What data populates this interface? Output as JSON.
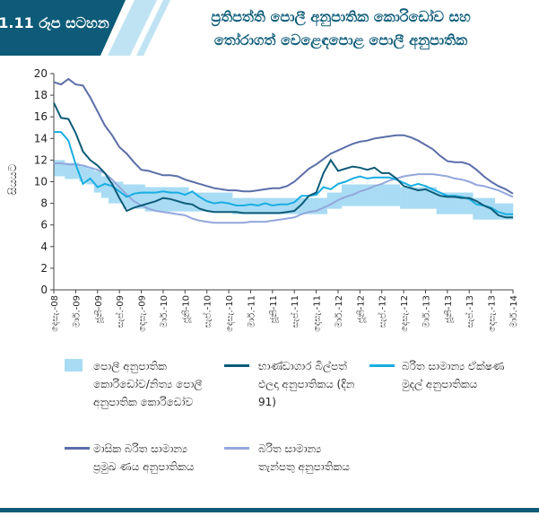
{
  "header": {
    "chart_number": "1.11 රූප සටහන",
    "title_lines": [
      "ප්‍රතිපත්ති පොලී අනුපාතික කොරිඩෝව සහ",
      "තෝරාගත් වෙළෙඳපොළ පොලී අනුපාතික"
    ]
  },
  "chart_data": {
    "type": "line",
    "ylabel": "සියයට",
    "ylim": [
      0,
      20
    ],
    "yticks": [
      0,
      2,
      4,
      6,
      8,
      10,
      12,
      14,
      16,
      18,
      20
    ],
    "categories": [
      "දෙසැ.-08",
      null,
      null,
      "මාර්.-09",
      null,
      null,
      "ජූනි-09",
      null,
      null,
      "සැප්.-09",
      null,
      null,
      "දෙසැ.-09",
      null,
      null,
      "මාර්.-10",
      null,
      null,
      "ජූනි-10",
      null,
      null,
      "සැප්.-10",
      null,
      null,
      "දෙසැ.-10",
      null,
      null,
      "මාර්.-11",
      null,
      null,
      "ජූනි-11",
      null,
      null,
      "සැප්.-11",
      null,
      null,
      "දෙසැ.-11",
      null,
      null,
      "මාර්.-12",
      null,
      null,
      "ජූනි-12",
      null,
      null,
      "සැප්.-12",
      null,
      null,
      "දෙසැ.-12",
      null,
      null,
      "මාර්.-13",
      null,
      null,
      "ජූනි-13",
      null,
      null,
      "සැප්.-13",
      null,
      null,
      "දෙසැ.-13",
      null,
      null,
      "මාර්.-14"
    ],
    "corridor": {
      "name": "පොලී අනුපාතික කොරිඩෝව/නිත්‍ය පොලී අනුපාතික කොරිඩෝව",
      "color": "#a9dcf4",
      "low": [
        10.5,
        10.5,
        10.25,
        10.25,
        10,
        9.75,
        9,
        8.5,
        8,
        8,
        7.5,
        7.5,
        7.5,
        7.25,
        7.25,
        7.25,
        7.25,
        7.25,
        7.25,
        7.25,
        7.25,
        7.25,
        7.25,
        7.25,
        7.25,
        7,
        7,
        7,
        7,
        7,
        7,
        7,
        7,
        7,
        7,
        7,
        7,
        7,
        7.5,
        7.5,
        7.75,
        7.75,
        7.75,
        7.75,
        7.75,
        7.75,
        7.75,
        7.75,
        7.5,
        7.5,
        7.5,
        7.5,
        7.5,
        7,
        7,
        7,
        7,
        7,
        6.5,
        6.5,
        6.5,
        6.5,
        6.5,
        6.5
      ],
      "high": [
        12,
        12,
        11.75,
        11.75,
        11.5,
        11.25,
        11,
        10.5,
        10,
        10,
        9.75,
        9.75,
        9.75,
        9.5,
        9.5,
        9.5,
        9.5,
        9.5,
        9.5,
        9,
        9,
        9,
        9,
        9,
        9,
        8.5,
        8.5,
        8.5,
        8.5,
        8.5,
        8.5,
        8.5,
        8.5,
        8.5,
        8.5,
        8.5,
        8.5,
        8.5,
        9,
        9,
        9.75,
        9.75,
        9.75,
        9.75,
        9.75,
        9.75,
        9.75,
        9.75,
        9.5,
        9.5,
        9.5,
        9.5,
        9.5,
        9,
        9,
        9,
        9,
        9,
        8.5,
        8.5,
        8.5,
        8,
        8,
        8
      ]
    },
    "series": [
      {
        "name": "භාණ්ඩාගාර බිල්පත් ඵලදා අනුපාතිකය (දින 91)",
        "color": "#0d5b78",
        "values": [
          17.3,
          15.9,
          15.8,
          14.5,
          12.8,
          12.0,
          11.5,
          10.8,
          9.8,
          8.5,
          7.3,
          7.6,
          7.8,
          8.0,
          8.2,
          8.5,
          8.4,
          8.2,
          8.0,
          7.9,
          7.5,
          7.3,
          7.2,
          7.2,
          7.2,
          7.2,
          7.1,
          7.1,
          7.1,
          7.1,
          7.1,
          7.1,
          7.2,
          7.3,
          7.9,
          8.7,
          9.0,
          10.8,
          12.0,
          11.0,
          11.2,
          11.4,
          11.3,
          11.1,
          11.3,
          10.8,
          10.8,
          10.3,
          9.6,
          9.4,
          9.2,
          9.3,
          9.0,
          8.7,
          8.6,
          8.6,
          8.5,
          8.5,
          8.2,
          7.8,
          7.5,
          6.9,
          6.7,
          6.7
        ]
      },
      {
        "name": "බරිත සාමාන්‍ය ඒක්ෂණ මුදල් අනුපාතිකය",
        "color": "#19ade2",
        "values": [
          14.6,
          14.6,
          13.8,
          11.6,
          9.8,
          10.3,
          9.5,
          9.8,
          9.6,
          9.1,
          8.6,
          8.9,
          9.0,
          9.0,
          9.0,
          9.1,
          9.0,
          9.0,
          8.8,
          9.1,
          8.6,
          8.2,
          8.0,
          8.1,
          8.0,
          7.8,
          7.8,
          7.9,
          7.8,
          8.0,
          7.8,
          7.9,
          7.9,
          8.1,
          8.7,
          8.7,
          8.8,
          9.5,
          9.3,
          9.8,
          10.0,
          10.3,
          10.5,
          10.3,
          10.4,
          10.4,
          10.4,
          10.2,
          9.9,
          9.6,
          9.8,
          9.6,
          9.3,
          9.0,
          8.7,
          8.7,
          8.6,
          8.4,
          7.9,
          7.8,
          7.6,
          7.2,
          7.0,
          7.0
        ]
      },
      {
        "name": "මාසික බරිත සාමාන්‍ය ප්‍රමුඛ ණය අනුපාතිකය",
        "color": "#5a6ea8",
        "values": [
          19.2,
          19.0,
          19.5,
          19.0,
          18.9,
          17.8,
          16.5,
          15.2,
          14.3,
          13.2,
          12.6,
          11.8,
          11.1,
          11.0,
          10.8,
          10.6,
          10.6,
          10.5,
          10.2,
          10.0,
          9.8,
          9.6,
          9.4,
          9.3,
          9.2,
          9.2,
          9.1,
          9.1,
          9.2,
          9.3,
          9.4,
          9.4,
          9.6,
          10.0,
          10.6,
          11.2,
          11.6,
          12.1,
          12.6,
          12.9,
          13.2,
          13.5,
          13.7,
          13.8,
          14.0,
          14.1,
          14.2,
          14.3,
          14.3,
          14.1,
          13.8,
          13.4,
          13.0,
          12.4,
          11.9,
          11.8,
          11.8,
          11.6,
          11.1,
          10.5,
          10.0,
          9.6,
          9.3,
          8.9
        ]
      },
      {
        "name": "බරිත සාමාන්‍ය තැන්පතු අනුපාතිකය",
        "color": "#93a7dc",
        "values": [
          11.7,
          11.7,
          11.6,
          11.6,
          11.5,
          11.3,
          11.1,
          10.8,
          10.2,
          9.5,
          8.8,
          8.2,
          7.8,
          7.5,
          7.3,
          7.2,
          7.1,
          7.0,
          6.9,
          6.6,
          6.4,
          6.3,
          6.2,
          6.2,
          6.2,
          6.2,
          6.2,
          6.3,
          6.3,
          6.3,
          6.4,
          6.5,
          6.6,
          6.7,
          7.0,
          7.2,
          7.3,
          7.6,
          7.9,
          8.3,
          8.6,
          8.8,
          9.1,
          9.3,
          9.6,
          9.8,
          10.1,
          10.3,
          10.5,
          10.6,
          10.7,
          10.7,
          10.7,
          10.6,
          10.5,
          10.3,
          10.2,
          10.0,
          9.7,
          9.6,
          9.4,
          9.2,
          8.9,
          8.6
        ]
      }
    ]
  }
}
